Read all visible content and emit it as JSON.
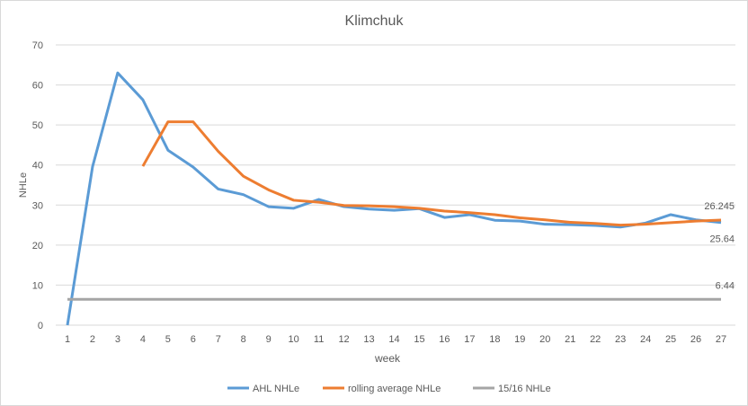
{
  "chart_data": {
    "type": "line",
    "title": "Klimchuk",
    "xlabel": "week",
    "ylabel": "NHLe",
    "ylim": [
      0,
      70
    ],
    "yticks": [
      0,
      10,
      20,
      30,
      40,
      50,
      60,
      70
    ],
    "grid": true,
    "legend_position": "bottom",
    "x": [
      1,
      2,
      3,
      4,
      5,
      6,
      7,
      8,
      9,
      10,
      11,
      12,
      13,
      14,
      15,
      16,
      17,
      18,
      19,
      20,
      21,
      22,
      23,
      24,
      25,
      26,
      27
    ],
    "series": [
      {
        "name": "AHL NHLe",
        "color": "#5b9bd5",
        "values": [
          0,
          39.6,
          63,
          56.3,
          43.7,
          39.5,
          34,
          32.6,
          29.6,
          29.2,
          31.4,
          29.6,
          29,
          28.7,
          29.1,
          26.9,
          27.6,
          26.2,
          26,
          25.2,
          25.1,
          24.9,
          24.5,
          25.5,
          27.6,
          26.3,
          25.64
        ]
      },
      {
        "name": "rolling average NHLe",
        "color": "#ed7d31",
        "values": [
          null,
          null,
          null,
          39.7,
          50.8,
          50.8,
          43.4,
          37.2,
          33.8,
          31.2,
          30.7,
          29.9,
          29.8,
          29.6,
          29.2,
          28.5,
          28.1,
          27.6,
          26.8,
          26.3,
          25.7,
          25.4,
          25,
          25.2,
          25.6,
          26,
          26.245
        ]
      },
      {
        "name": "15/16 NHLe",
        "color": "#a5a5a5",
        "values": [
          6.44,
          6.44,
          6.44,
          6.44,
          6.44,
          6.44,
          6.44,
          6.44,
          6.44,
          6.44,
          6.44,
          6.44,
          6.44,
          6.44,
          6.44,
          6.44,
          6.44,
          6.44,
          6.44,
          6.44,
          6.44,
          6.44,
          6.44,
          6.44,
          6.44,
          6.44,
          6.44
        ]
      }
    ],
    "data_labels": [
      {
        "series": "rolling average NHLe",
        "x": 27,
        "text": "26.245"
      },
      {
        "series": "AHL NHLe",
        "x": 27,
        "text": "25.64"
      },
      {
        "series": "15/16 NHLe",
        "x": 27,
        "text": "6.44"
      }
    ]
  }
}
